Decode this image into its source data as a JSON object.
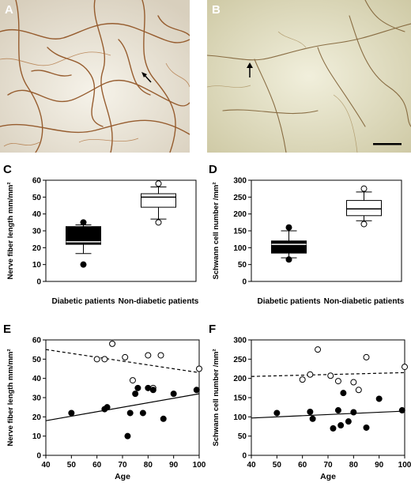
{
  "panels": {
    "A": "A",
    "B": "B",
    "C": "C",
    "D": "D",
    "E": "E",
    "F": "F"
  },
  "micrographs": [
    {
      "panel": "A",
      "arrow": true,
      "scale_bar": false
    },
    {
      "panel": "B",
      "arrow": true,
      "scale_bar": true
    }
  ],
  "chart_data": [
    {
      "panel": "C",
      "type": "box",
      "title": "",
      "xlabel": "",
      "ylabel": "Nerve fiber length mm/mm²",
      "ylim": [
        0,
        60
      ],
      "yticks": [
        0,
        10,
        20,
        30,
        40,
        50,
        60
      ],
      "categories": [
        "Diabetic patients",
        "Non-diabetic patients"
      ],
      "boxes": [
        {
          "name": "Diabetic patients",
          "whisker_low": 16.5,
          "q1": 22,
          "median": 23.5,
          "q3": 32.5,
          "whisker_high": 33.5,
          "outliers": [
            10,
            35
          ],
          "fill": "#000000"
        },
        {
          "name": "Non-diabetic patients",
          "whisker_low": 37,
          "q1": 44,
          "median": 50,
          "q3": 52,
          "whisker_high": 56,
          "outliers": [
            35,
            58
          ],
          "fill": "#ffffff"
        }
      ]
    },
    {
      "panel": "D",
      "type": "box",
      "title": "",
      "xlabel": "",
      "ylabel": "Schwann cell number /mm²",
      "ylim": [
        0,
        300
      ],
      "yticks": [
        0,
        50,
        100,
        150,
        200,
        250,
        300
      ],
      "categories": [
        "Diabetic patients",
        "Non-diabetic patients"
      ],
      "boxes": [
        {
          "name": "Diabetic patients",
          "whisker_low": 70,
          "q1": 84,
          "median": 110,
          "q3": 120,
          "whisker_high": 150,
          "outliers": [
            65,
            160
          ],
          "fill": "#000000"
        },
        {
          "name": "Non-diabetic patients",
          "whisker_low": 180,
          "q1": 195,
          "median": 215,
          "q3": 240,
          "whisker_high": 265,
          "outliers": [
            170,
            275
          ],
          "fill": "#ffffff"
        }
      ]
    },
    {
      "panel": "E",
      "type": "scatter",
      "title": "",
      "xlabel": "Age",
      "ylabel": "Nerve fiber length mm/mm²",
      "xlim": [
        40,
        100
      ],
      "ylim": [
        0,
        60
      ],
      "xticks": [
        40,
        50,
        60,
        70,
        80,
        90,
        100
      ],
      "yticks": [
        0,
        10,
        20,
        30,
        40,
        50,
        60
      ],
      "series": [
        {
          "marker": "open",
          "trend": "dashed",
          "trend_line": [
            [
              40,
              55
            ],
            [
              100,
              43
            ]
          ],
          "points": [
            [
              60,
              50
            ],
            [
              63,
              50
            ],
            [
              66,
              58
            ],
            [
              71,
              51
            ],
            [
              74,
              39
            ],
            [
              80,
              52
            ],
            [
              82,
              35
            ],
            [
              85,
              52
            ],
            [
              100,
              45
            ]
          ]
        },
        {
          "marker": "filled",
          "trend": "solid",
          "trend_line": [
            [
              40,
              18
            ],
            [
              100,
              32
            ]
          ],
          "points": [
            [
              50,
              22
            ],
            [
              63,
              24
            ],
            [
              64,
              25
            ],
            [
              72,
              10
            ],
            [
              73,
              22
            ],
            [
              75,
              32
            ],
            [
              76,
              35
            ],
            [
              78,
              22
            ],
            [
              80,
              35
            ],
            [
              82,
              34
            ],
            [
              86,
              19
            ],
            [
              90,
              32
            ],
            [
              99,
              34
            ]
          ]
        }
      ]
    },
    {
      "panel": "F",
      "type": "scatter",
      "title": "",
      "xlabel": "Age",
      "ylabel": "Schwann cell number /mm²",
      "xlim": [
        40,
        100
      ],
      "ylim": [
        0,
        300
      ],
      "xticks": [
        40,
        50,
        60,
        70,
        80,
        90,
        100
      ],
      "yticks": [
        0,
        50,
        100,
        150,
        200,
        250,
        300
      ],
      "series": [
        {
          "marker": "open",
          "trend": "dashed",
          "trend_line": [
            [
              40,
              205
            ],
            [
              100,
              215
            ]
          ],
          "points": [
            [
              60,
              197
            ],
            [
              63,
              210
            ],
            [
              66,
              275
            ],
            [
              71,
              207
            ],
            [
              74,
              193
            ],
            [
              80,
              190
            ],
            [
              82,
              170
            ],
            [
              85,
              255
            ],
            [
              100,
              230
            ]
          ]
        },
        {
          "marker": "filled",
          "trend": "solid",
          "trend_line": [
            [
              40,
              97
            ],
            [
              100,
              115
            ]
          ],
          "points": [
            [
              50,
              110
            ],
            [
              63,
              113
            ],
            [
              64,
              95
            ],
            [
              72,
              70
            ],
            [
              74,
              117
            ],
            [
              75,
              78
            ],
            [
              76,
              162
            ],
            [
              78,
              88
            ],
            [
              80,
              112
            ],
            [
              85,
              72
            ],
            [
              90,
              147
            ],
            [
              99,
              117
            ]
          ]
        }
      ]
    }
  ]
}
